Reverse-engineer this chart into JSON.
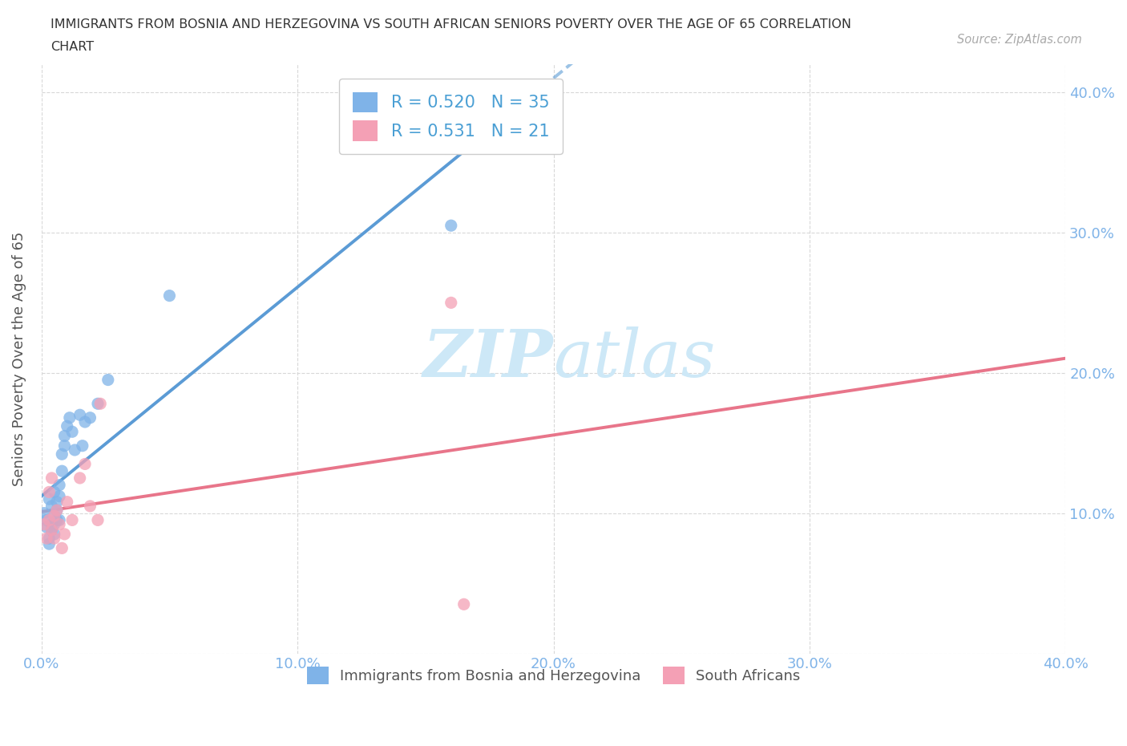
{
  "title_line1": "IMMIGRANTS FROM BOSNIA AND HERZEGOVINA VS SOUTH AFRICAN SENIORS POVERTY OVER THE AGE OF 65 CORRELATION",
  "title_line2": "CHART",
  "source_text": "Source: ZipAtlas.com",
  "ylabel": "Seniors Poverty Over the Age of 65",
  "xlim": [
    0.0,
    0.4
  ],
  "ylim": [
    0.0,
    0.42
  ],
  "xticks": [
    0.0,
    0.1,
    0.2,
    0.3,
    0.4
  ],
  "yticks": [
    0.0,
    0.1,
    0.2,
    0.3,
    0.4
  ],
  "xticklabels": [
    "0.0%",
    "10.0%",
    "20.0%",
    "30.0%",
    "40.0%"
  ],
  "yticklabels_right": [
    "",
    "10.0%",
    "20.0%",
    "30.0%",
    "40.0%"
  ],
  "blue_R": 0.52,
  "blue_N": 35,
  "pink_R": 0.531,
  "pink_N": 21,
  "blue_color": "#7fb3e8",
  "pink_color": "#f4a0b5",
  "trendline_blue_color": "#5b9bd5",
  "trendline_pink_color": "#e8758a",
  "watermark_color": "#cde8f7",
  "legend_label_blue": "Immigrants from Bosnia and Herzegovina",
  "legend_label_pink": "South Africans",
  "blue_scatter_x": [
    0.001,
    0.002,
    0.002,
    0.003,
    0.003,
    0.003,
    0.004,
    0.004,
    0.004,
    0.005,
    0.005,
    0.005,
    0.005,
    0.006,
    0.006,
    0.006,
    0.007,
    0.007,
    0.007,
    0.008,
    0.008,
    0.009,
    0.009,
    0.01,
    0.011,
    0.012,
    0.013,
    0.015,
    0.016,
    0.017,
    0.019,
    0.022,
    0.026,
    0.05,
    0.16
  ],
  "blue_scatter_y": [
    0.1,
    0.09,
    0.095,
    0.11,
    0.082,
    0.078,
    0.092,
    0.088,
    0.105,
    0.098,
    0.115,
    0.092,
    0.085,
    0.102,
    0.095,
    0.108,
    0.12,
    0.112,
    0.095,
    0.13,
    0.142,
    0.155,
    0.148,
    0.162,
    0.168,
    0.158,
    0.145,
    0.17,
    0.148,
    0.165,
    0.168,
    0.178,
    0.195,
    0.255,
    0.305
  ],
  "pink_scatter_x": [
    0.001,
    0.002,
    0.003,
    0.003,
    0.004,
    0.004,
    0.005,
    0.005,
    0.006,
    0.007,
    0.008,
    0.009,
    0.01,
    0.012,
    0.015,
    0.017,
    0.019,
    0.023,
    0.16,
    0.022,
    0.165
  ],
  "pink_scatter_y": [
    0.092,
    0.082,
    0.095,
    0.115,
    0.088,
    0.125,
    0.098,
    0.082,
    0.102,
    0.092,
    0.075,
    0.085,
    0.108,
    0.095,
    0.125,
    0.135,
    0.105,
    0.178,
    0.25,
    0.095,
    0.035
  ],
  "background_color": "#ffffff",
  "grid_color": "#d8d8d8",
  "tick_color": "#7fb3e8"
}
